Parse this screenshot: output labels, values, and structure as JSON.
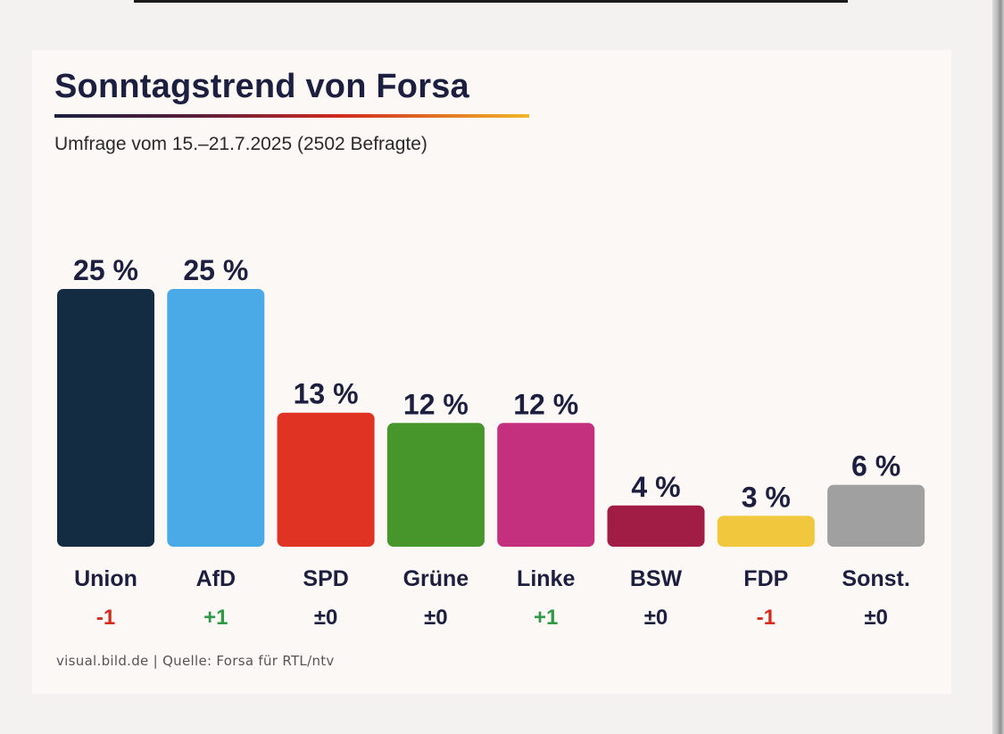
{
  "title": "Sonntagstrend von Forsa",
  "subtitle": "Umfrage vom 15.–21.7.2025 (2502 Befragte)",
  "source": "visual.bild.de | Quelle: Forsa für RTL/ntv",
  "colors": {
    "title": "#1c1f3f",
    "positive": "#2e9a47",
    "negative": "#d52a1e",
    "neutral": "#1c1f3f"
  },
  "chart_data": {
    "type": "bar",
    "title": "Sonntagstrend von Forsa",
    "xlabel": "",
    "ylabel": "",
    "ylim": [
      0,
      25
    ],
    "categories": [
      "Union",
      "AfD",
      "SPD",
      "Grüne",
      "Linke",
      "BSW",
      "FDP",
      "Sonst."
    ],
    "values": [
      25,
      25,
      13,
      12,
      12,
      4,
      3,
      6
    ],
    "value_labels": [
      "25 %",
      "25 %",
      "13 %",
      "12 %",
      "12 %",
      "4 %",
      "3 %",
      "6 %"
    ],
    "changes": [
      "-1",
      "+1",
      "±0",
      "±0",
      "+1",
      "±0",
      "-1",
      "±0"
    ],
    "change_types": [
      "negative",
      "positive",
      "neutral",
      "neutral",
      "positive",
      "neutral",
      "negative",
      "neutral"
    ],
    "bar_colors": [
      "#142c42",
      "#4aaae8",
      "#e03324",
      "#46962b",
      "#c5307e",
      "#a11d46",
      "#f0c73d",
      "#a0a0a0"
    ]
  }
}
